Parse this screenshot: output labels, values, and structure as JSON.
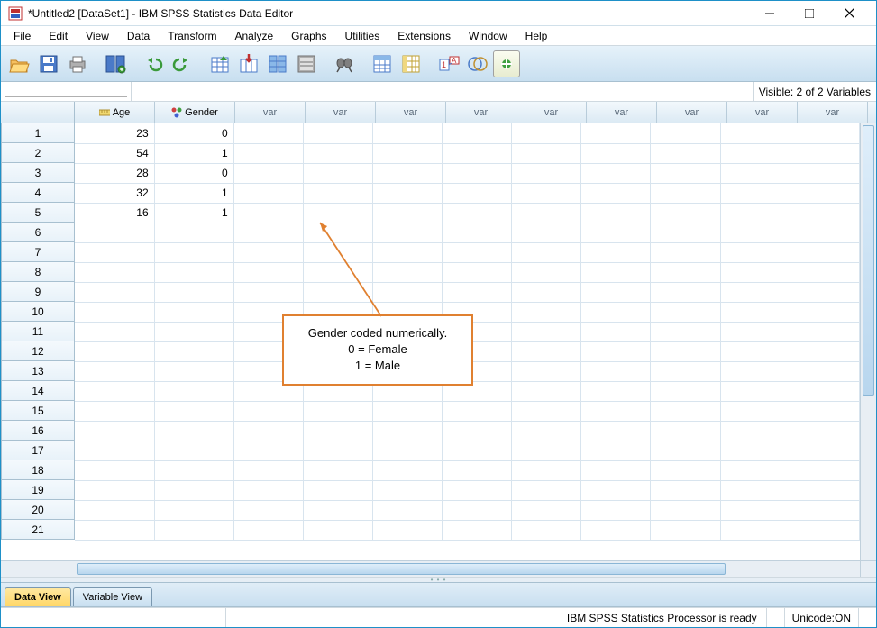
{
  "window": {
    "title": "*Untitled2 [DataSet1] - IBM SPSS Statistics Data Editor"
  },
  "menu": {
    "file": "File",
    "edit": "Edit",
    "view": "View",
    "data": "Data",
    "transform": "Transform",
    "analyze": "Analyze",
    "graphs": "Graphs",
    "utilities": "Utilities",
    "extensions": "Extensions",
    "window": "Window",
    "help": "Help"
  },
  "infobar": {
    "visible": "Visible: 2 of 2 Variables"
  },
  "columns": {
    "defined": [
      {
        "name": "Age",
        "icon": "ruler"
      },
      {
        "name": "Gender",
        "icon": "nominal"
      }
    ],
    "placeholder": "var",
    "placeholder_count": 9
  },
  "rows": {
    "count": 21,
    "data": [
      {
        "Age": "23",
        "Gender": "0"
      },
      {
        "Age": "54",
        "Gender": "1"
      },
      {
        "Age": "28",
        "Gender": "0"
      },
      {
        "Age": "32",
        "Gender": "1"
      },
      {
        "Age": "16",
        "Gender": "1"
      }
    ]
  },
  "annotation": {
    "line1": "Gender coded numerically.",
    "line2": "0 = Female",
    "line3": "1 = Male",
    "box_border_color": "#e08030",
    "arrow_color": "#e08030"
  },
  "tabs": {
    "data_view": "Data View",
    "variable_view": "Variable View"
  },
  "status": {
    "processor": "IBM SPSS Statistics Processor is ready",
    "unicode": "Unicode:ON"
  },
  "colors": {
    "window_border": "#1e90c8",
    "header_grad_top": "#e6f2fa",
    "header_grad_bot": "#c8dff0",
    "grid_line": "#d8e4ee",
    "active_tab_top": "#ffe8a0",
    "active_tab_bot": "#ffd767"
  }
}
